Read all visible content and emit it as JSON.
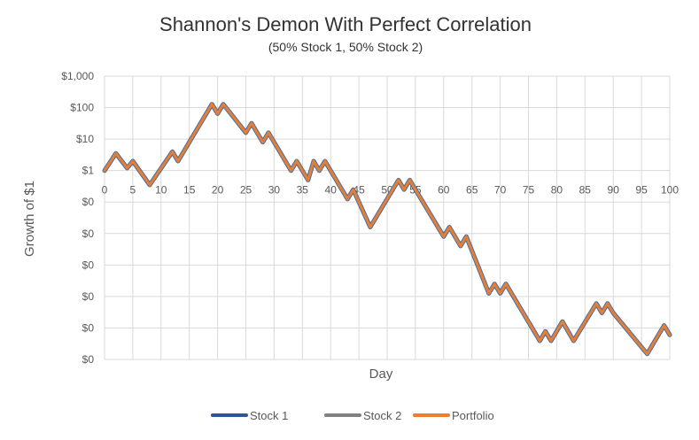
{
  "chart_data": {
    "type": "line",
    "title": "Shannon's Demon With Perfect Correlation",
    "subtitle": "(50% Stock 1, 50% Stock 2)",
    "xlabel": "Day",
    "ylabel": "Growth of $1",
    "yscale": "log",
    "xlim": [
      0,
      100
    ],
    "ylim": [
      1e-06,
      1000
    ],
    "x_ticks": [
      0,
      5,
      10,
      15,
      20,
      25,
      30,
      35,
      40,
      45,
      50,
      55,
      60,
      65,
      70,
      75,
      80,
      85,
      90,
      95,
      100
    ],
    "x_tick_labels": [
      "0",
      "5",
      "10",
      "15",
      "20",
      "25",
      "30",
      "35",
      "40",
      "45",
      "50",
      "55",
      "60",
      "65",
      "70",
      "75",
      "80",
      "85",
      "90",
      "95",
      "100"
    ],
    "y_ticks": [
      1000,
      100,
      10,
      1,
      0.1,
      0.01,
      0.001,
      0.0001,
      1e-05,
      1e-06
    ],
    "y_tick_labels": [
      "$1,000",
      "$100",
      "$10",
      "$1",
      "$0",
      "$0",
      "$0",
      "$0",
      "$0",
      "$0"
    ],
    "grid": true,
    "legend_position": "bottom",
    "x": [
      0,
      2,
      4,
      5,
      8,
      12,
      13,
      19,
      20,
      21,
      25,
      26,
      28,
      29,
      33,
      34,
      36,
      37,
      38,
      39,
      43,
      44,
      47,
      52,
      53,
      54,
      55,
      60,
      61,
      63,
      64,
      68,
      69,
      70,
      71,
      77,
      78,
      79,
      81,
      83,
      87,
      88,
      89,
      90,
      96,
      99,
      100
    ],
    "y": [
      1,
      3.5,
      1.2,
      2,
      0.35,
      4,
      2,
      128,
      64,
      128,
      16,
      32,
      8,
      16,
      1,
      2,
      0.5,
      2,
      1,
      2,
      0.125,
      0.25,
      0.016,
      0.5,
      0.25,
      0.5,
      0.25,
      0.008,
      0.016,
      0.004,
      0.008,
      0.000125,
      0.00025,
      0.000125,
      0.00025,
      3.9e-06,
      7.8e-06,
      3.9e-06,
      1.6e-05,
      3.9e-06,
      6e-05,
      3e-05,
      6e-05,
      3e-05,
      1.5e-06,
      1.2e-05,
      6e-06
    ],
    "series": [
      {
        "name": "Stock 1",
        "color": "#2e5597",
        "line_width": 5
      },
      {
        "name": "Stock 2",
        "color": "#808080",
        "line_width": 4
      },
      {
        "name": "Portfolio",
        "color": "#ed7d31",
        "line_width": 2.5
      }
    ]
  }
}
